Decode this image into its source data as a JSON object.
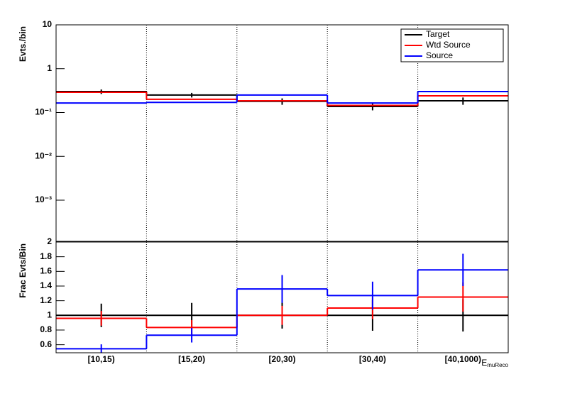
{
  "chart_data": [
    {
      "type": "step",
      "log_y": true,
      "ylabel": "Evts./bin",
      "ylim": [
        0.000115,
        10
      ],
      "yticks": [
        10,
        1,
        {
          "value": 0.1,
          "label": "10⁻¹"
        },
        {
          "value": 0.01,
          "label": "10⁻²"
        },
        {
          "value": 0.001,
          "label": "10⁻³"
        }
      ],
      "legend": "top-right",
      "bin_edge_lines": true,
      "series": [
        {
          "name": "Target",
          "color": "#000000",
          "values": [
            0.3,
            0.25,
            0.18,
            0.137,
            0.185
          ],
          "errors": [
            0.035,
            0.03,
            0.03,
            0.025,
            0.035
          ]
        },
        {
          "name": "Wtd Source",
          "color": "#ff0000",
          "values": [
            0.29,
            0.2,
            0.185,
            0.145,
            0.24
          ]
        },
        {
          "name": "Source",
          "color": "#0000ff",
          "values": [
            0.165,
            0.17,
            0.25,
            0.165,
            0.3
          ]
        }
      ]
    },
    {
      "type": "step",
      "log_y": false,
      "ylabel": "Frac Evts/Bin",
      "ylim": [
        0.49,
        2
      ],
      "yticks": [
        0.6,
        0.8,
        1,
        1.2,
        1.4,
        1.6,
        1.8,
        2
      ],
      "categories": [
        "[10,15)",
        "[15,20)",
        "[20,30)",
        "[30,40)",
        "[40,1000)"
      ],
      "xlabel": "E",
      "xlabel_sub": "muReco",
      "bin_edge_lines": true,
      "series": [
        {
          "color": "#000000",
          "values": [
            1,
            1,
            1,
            1,
            1
          ],
          "errors": [
            0.16,
            0.17,
            0.18,
            0.21,
            0.22
          ]
        },
        {
          "color": "#ff0000",
          "values": [
            0.96,
            0.835,
            1.0,
            1.1,
            1.25
          ],
          "errors": [
            0.1,
            0.1,
            0.13,
            0.15,
            0.2
          ]
        },
        {
          "color": "#0000ff",
          "values": [
            0.545,
            0.73,
            1.36,
            1.27,
            1.62
          ],
          "errors": [
            0.06,
            0.1,
            0.19,
            0.19,
            0.22
          ]
        }
      ]
    }
  ]
}
